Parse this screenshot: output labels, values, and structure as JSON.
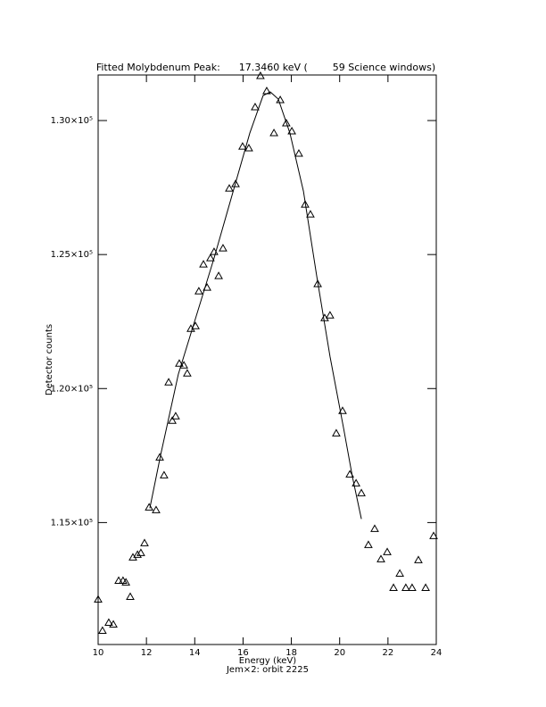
{
  "chart_data": {
    "type": "scatter",
    "title": "Fitted Molybdenum Peak:      17.3460 keV (        59 Science windows)",
    "x_label": "Energy (keV)",
    "subtitle": "Jem×2: orbit 2225",
    "y_label": "Detector counts",
    "xlim": [
      10,
      24
    ],
    "xticks": [
      10,
      12,
      14,
      16,
      18,
      20,
      22,
      24
    ],
    "ylim": [
      110450,
      131700
    ],
    "yticks": [
      {
        "value": 115000,
        "label": "1.15×10⁵"
      },
      {
        "value": 120000,
        "label": "1.20×10⁵"
      },
      {
        "value": 125000,
        "label": "1.25×10⁵"
      },
      {
        "value": 130000,
        "label": "1.30×10⁵"
      }
    ],
    "series": [
      {
        "marker": "triangle",
        "color": "#000000",
        "x": [
          10.0,
          10.18,
          10.44,
          10.63,
          10.85,
          11.03,
          11.15,
          11.33,
          11.44,
          11.63,
          11.77,
          11.92,
          12.11,
          12.4,
          12.55,
          12.73,
          12.92,
          13.07,
          13.21,
          13.36,
          13.55,
          13.69,
          13.84,
          14.03,
          14.17,
          14.36,
          14.51,
          14.65,
          14.8,
          14.99,
          15.17,
          15.43,
          15.69,
          15.98,
          16.24,
          16.5,
          16.72,
          16.98,
          17.28,
          17.54,
          17.79,
          18.02,
          18.31,
          18.57,
          18.79,
          19.09,
          19.38,
          19.6,
          19.86,
          20.12,
          20.42,
          20.68,
          20.9,
          21.19,
          21.45,
          21.71,
          21.97,
          22.23,
          22.49,
          22.74,
          23.0,
          23.26,
          23.56,
          23.89
        ],
        "values": [
          112133,
          110967,
          111267,
          111200,
          112833,
          112833,
          112767,
          112233,
          113700,
          113800,
          113867,
          114233,
          115567,
          115467,
          117433,
          116767,
          120233,
          118800,
          118967,
          120933,
          120867,
          120567,
          122233,
          122333,
          123633,
          124633,
          123767,
          124867,
          125100,
          124200,
          125233,
          127467,
          127633,
          129033,
          128967,
          130500,
          131667,
          131100,
          129533,
          130767,
          129900,
          129600,
          128767,
          126867,
          126500,
          123900,
          122633,
          122733,
          118333,
          119167,
          116800,
          116467,
          116100,
          114167,
          114767,
          113633,
          113900,
          112567,
          113100,
          112567,
          112567,
          113600,
          112567,
          114500
        ]
      },
      {
        "marker": "line",
        "color": "#000000",
        "x": [
          12.14,
          12.59,
          13.32,
          14.06,
          14.8,
          15.54,
          16.28,
          16.83,
          17.13,
          17.46,
          17.94,
          18.5,
          19.05,
          19.6,
          20.16,
          20.53,
          20.9
        ],
        "values": [
          115533,
          117533,
          120533,
          122700,
          124867,
          127200,
          129533,
          130933,
          131067,
          130800,
          129533,
          127367,
          124200,
          121200,
          118533,
          116700,
          115133
        ]
      }
    ]
  }
}
